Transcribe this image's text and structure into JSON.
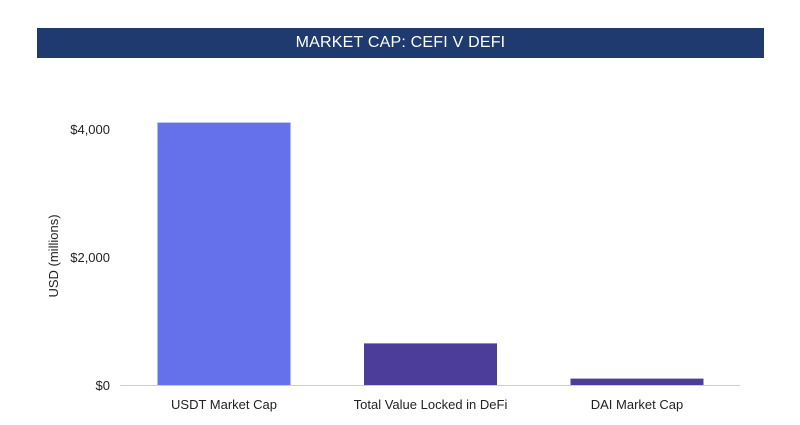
{
  "chart_data": {
    "type": "bar",
    "title": "MARKET CAP: CEFI V DEFI",
    "xlabel": "",
    "ylabel": "USD (millions)",
    "categories": [
      "USDT Market Cap",
      "Total Value Locked in DeFi",
      "DAI Market Cap"
    ],
    "values": [
      4100,
      650,
      100
    ],
    "ylim": [
      0,
      4000
    ],
    "yticks": [
      0,
      2000,
      4000
    ],
    "ytick_labels": [
      "$0",
      "$2,000",
      "$4,000"
    ],
    "bar_colors": [
      "#6570eb",
      "#4c3d9a",
      "#4c3d9a"
    ],
    "grid": false,
    "legend": "none"
  },
  "colors": {
    "title_background": "#1f3a6e",
    "title_text": "#ffffff",
    "axis_line": "#c9c9ee"
  }
}
